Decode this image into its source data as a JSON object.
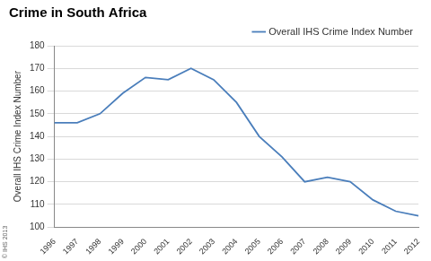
{
  "chart_data": {
    "type": "line",
    "title": "Crime in South Africa",
    "y_label": "Overall IHS Crime Index Number",
    "annotations": [
      "© IHS 2013"
    ],
    "categories": [
      "1996",
      "1997",
      "1998",
      "1999",
      "2000",
      "2001",
      "2002",
      "2003",
      "2004",
      "2005",
      "2006",
      "2007",
      "2008",
      "2009",
      "2010",
      "2011",
      "2012"
    ],
    "series": [
      {
        "name": "Overall IHS Crime Index Number",
        "color": "#4a7ebb",
        "values": [
          146,
          146,
          150,
          159,
          166,
          165,
          170,
          165,
          155,
          140,
          131,
          120,
          122,
          120,
          112,
          107,
          105
        ]
      }
    ],
    "ylim": [
      100,
      180
    ],
    "yticks": [
      100,
      110,
      120,
      130,
      140,
      150,
      160,
      170,
      180
    ],
    "grid": true,
    "legend": "top-right"
  }
}
